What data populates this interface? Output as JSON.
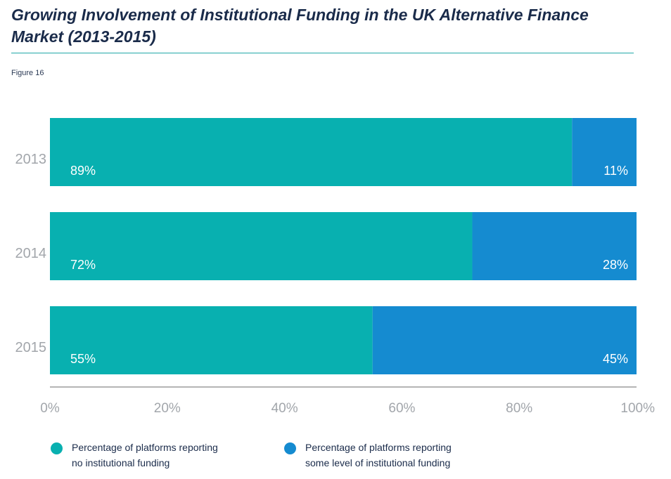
{
  "title": "Growing Involvement of Institutional Funding in the UK Alternative Finance Market (2013-2015)",
  "figure_label": "Figure 16",
  "colors": {
    "no_funding": "#08b0b0",
    "some_funding": "#158bd0",
    "axis_text": "#a2a6ab",
    "axis_line": "#b5b5b5",
    "bar_label": "#ffffff"
  },
  "chart_data": {
    "type": "bar",
    "orientation": "horizontal",
    "stacked": true,
    "categories": [
      "2013",
      "2014",
      "2015"
    ],
    "series": [
      {
        "name": "Percentage of platforms reporting\nno institutional funding",
        "values": [
          89,
          72,
          55
        ],
        "labels": [
          "89%",
          "72%",
          "55%"
        ]
      },
      {
        "name": "Percentage of platforms reporting\nsome level of institutional funding",
        "values": [
          11,
          28,
          45
        ],
        "labels": [
          "11%",
          "28%",
          "45%"
        ]
      }
    ],
    "xticks": [
      "0%",
      "20%",
      "40%",
      "60%",
      "80%",
      "100%"
    ],
    "xlim": [
      0,
      100
    ],
    "grid": false,
    "legend_position": "bottom"
  }
}
